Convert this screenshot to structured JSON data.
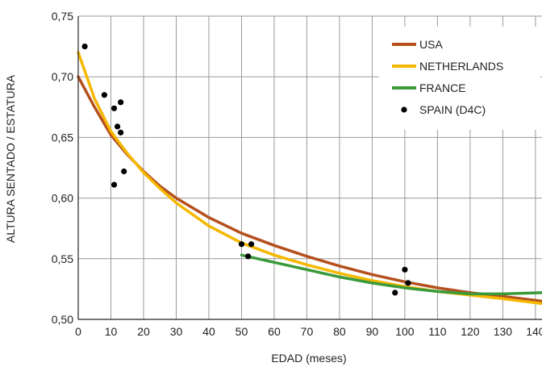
{
  "chart_data": {
    "type": "line",
    "title": "",
    "xlabel": "EDAD (meses)",
    "ylabel": "ALTURA SENTADO / ESTATURA",
    "xlim": [
      0,
      142
    ],
    "ylim": [
      0.5,
      0.75
    ],
    "xticks": [
      0,
      10,
      20,
      30,
      40,
      50,
      60,
      70,
      80,
      90,
      100,
      110,
      120,
      130,
      140
    ],
    "xtick_labels": [
      "0",
      "10",
      "20",
      "30",
      "40",
      "50",
      "60",
      "70",
      "80",
      "90",
      "100",
      "110",
      "120",
      "130",
      "140"
    ],
    "yticks": [
      0.5,
      0.55,
      0.6,
      0.65,
      0.7,
      0.75
    ],
    "ytick_labels": [
      "0,50",
      "0,55",
      "0,60",
      "0,65",
      "0,70",
      "0,75"
    ],
    "grid": true,
    "legend_position": "top-right",
    "series": [
      {
        "name": "USA",
        "kind": "line",
        "color": "#b5501e",
        "x": [
          0,
          5,
          10,
          15,
          20,
          25,
          30,
          40,
          50,
          60,
          70,
          80,
          90,
          100,
          110,
          120,
          130,
          142
        ],
        "y": [
          0.7,
          0.675,
          0.652,
          0.636,
          0.622,
          0.61,
          0.6,
          0.584,
          0.571,
          0.561,
          0.552,
          0.544,
          0.537,
          0.531,
          0.526,
          0.522,
          0.519,
          0.515
        ]
      },
      {
        "name": "NETHERLANDS",
        "kind": "line",
        "color": "#f5b800",
        "x": [
          0,
          5,
          10,
          15,
          20,
          25,
          30,
          40,
          50,
          60,
          70,
          80,
          90,
          100,
          110,
          120,
          130,
          142
        ],
        "y": [
          0.72,
          0.682,
          0.655,
          0.637,
          0.621,
          0.608,
          0.596,
          0.577,
          0.563,
          0.553,
          0.545,
          0.538,
          0.532,
          0.527,
          0.523,
          0.52,
          0.517,
          0.513
        ]
      },
      {
        "name": "FRANCE",
        "kind": "line",
        "color": "#3a9a3a",
        "x": [
          50,
          60,
          70,
          80,
          90,
          100,
          110,
          120,
          130,
          142
        ],
        "y": [
          0.553,
          0.547,
          0.541,
          0.535,
          0.53,
          0.526,
          0.523,
          0.521,
          0.521,
          0.522
        ]
      },
      {
        "name": "SPAIN (D4C)",
        "kind": "scatter",
        "color": "#000000",
        "x": [
          2,
          8,
          11,
          12,
          13,
          13,
          11,
          14,
          50,
          52,
          53,
          97,
          100,
          101
        ],
        "y": [
          0.725,
          0.685,
          0.674,
          0.659,
          0.654,
          0.679,
          0.611,
          0.622,
          0.562,
          0.552,
          0.562,
          0.522,
          0.541,
          0.53
        ]
      }
    ]
  }
}
